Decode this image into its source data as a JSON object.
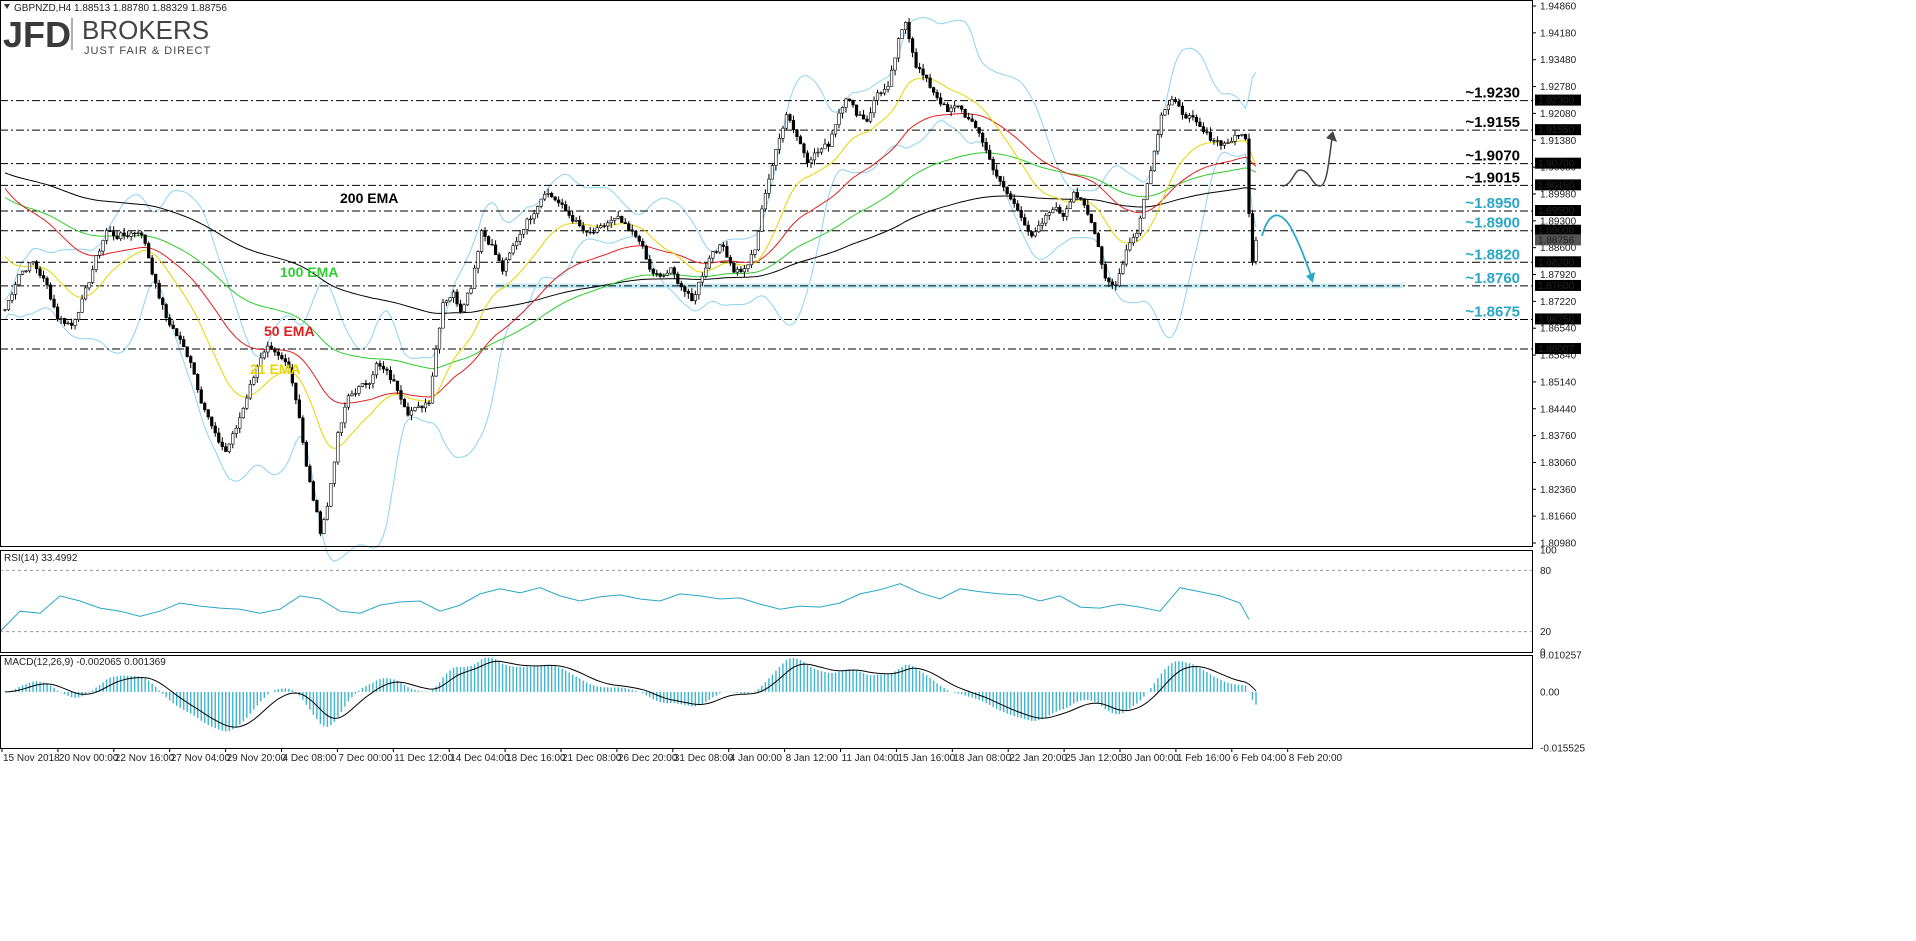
{
  "chart_data": [
    {
      "type": "candlestick",
      "symbol_header": "GBPNZD,H4  1.88513 1.88780 1.88329 1.88756",
      "brand": {
        "main": "JFD",
        "secondary": "BROKERS",
        "tagline": "JUST FAIR & DIRECT"
      },
      "ylim": [
        1.8098,
        1.948
      ],
      "y_ticks": [
        "1.94860",
        "1.94180",
        "1.93480",
        "1.92780",
        "1.92080",
        "1.91380",
        "1.90680",
        "1.89980",
        "1.89300",
        "1.88600",
        "1.87920",
        "1.87220",
        "1.86540",
        "1.85840",
        "1.85140",
        "1.84440",
        "1.83760",
        "1.83060",
        "1.82360",
        "1.81660",
        "1.80980"
      ],
      "x_ticks": [
        "15 Nov 2018",
        "20 Nov 00:00",
        "22 Nov 16:00",
        "27 Nov 04:00",
        "29 Nov 20:00",
        "4 Dec 08:00",
        "7 Dec 00:00",
        "11 Dec 12:00",
        "14 Dec 04:00",
        "18 Dec 16:00",
        "21 Dec 08:00",
        "26 Dec 20:00",
        "31 Dec 08:00",
        "4 Jan 00:00",
        "8 Jan 12:00",
        "11 Jan 04:00",
        "15 Jan 16:00",
        "18 Jan 08:00",
        "22 Jan 20:00",
        "25 Jan 12:00",
        "30 Jan 00:00",
        "1 Feb 16:00",
        "6 Feb 04:00",
        "8 Feb 20:00"
      ],
      "levels": [
        {
          "label": "~1.9230",
          "value": 1.923,
          "axis_label": "1.92300",
          "color": "#000000"
        },
        {
          "label": "~1.9155",
          "value": 1.9155,
          "axis_label": "1.91550",
          "color": "#000000"
        },
        {
          "label": "~1.9070",
          "value": 1.907,
          "axis_label": "1.90700",
          "color": "#000000"
        },
        {
          "label": "~1.9015",
          "value": 1.9015,
          "axis_label": "1.90150",
          "color": "#000000"
        },
        {
          "label": "~1.8950",
          "value": 1.895,
          "axis_label": "1.89500",
          "color": "#29a7c6"
        },
        {
          "label": "~1.8900",
          "value": 1.89,
          "axis_label": "1.89000",
          "color": "#29a7c6"
        },
        {
          "label": "~1.8820",
          "value": 1.882,
          "axis_label": "1.88200",
          "color": "#29a7c6"
        },
        {
          "label": "~1.8760",
          "value": 1.876,
          "axis_label": "1.87600",
          "color": "#29a7c6"
        },
        {
          "label": "~1.8675",
          "value": 1.8675,
          "axis_label": "1.86750",
          "color": "#29a7c6"
        },
        {
          "label": "",
          "value": 1.86,
          "axis_label": "1.86007",
          "color": "#000000"
        }
      ],
      "current_price_label": "1.88756",
      "current_price": 1.88756,
      "ema_labels": [
        {
          "text": "200 EMA",
          "color": "#000000"
        },
        {
          "text": "100 EMA",
          "color": "#2ecc2e"
        },
        {
          "text": "50 EMA",
          "color": "#e02020"
        },
        {
          "text": "21 EMA",
          "color": "#e8d400"
        }
      ],
      "price_path": [
        [
          0,
          1.87
        ],
        [
          4,
          1.879
        ],
        [
          8,
          1.882
        ],
        [
          12,
          1.876
        ],
        [
          15,
          1.868
        ],
        [
          19,
          1.866
        ],
        [
          22,
          1.872
        ],
        [
          26,
          1.883
        ],
        [
          29,
          1.89
        ],
        [
          32,
          1.8885
        ],
        [
          35,
          1.889
        ],
        [
          38,
          1.89
        ],
        [
          40,
          1.887
        ],
        [
          43,
          1.876
        ],
        [
          46,
          1.868
        ],
        [
          50,
          1.862
        ],
        [
          53,
          1.857
        ],
        [
          56,
          1.847
        ],
        [
          60,
          1.838
        ],
        [
          63,
          1.834
        ],
        [
          66,
          1.84
        ],
        [
          69,
          1.848
        ],
        [
          72,
          1.856
        ],
        [
          75,
          1.86
        ],
        [
          78,
          1.858
        ],
        [
          81,
          1.856
        ],
        [
          84,
          1.843
        ],
        [
          86,
          1.83
        ],
        [
          88,
          1.822
        ],
        [
          90,
          1.814
        ],
        [
          92,
          1.82
        ],
        [
          95,
          1.838
        ],
        [
          98,
          1.848
        ],
        [
          101,
          1.85
        ],
        [
          104,
          1.852
        ],
        [
          106,
          1.856
        ],
        [
          109,
          1.854
        ],
        [
          112,
          1.85
        ],
        [
          115,
          1.844
        ],
        [
          118,
          1.845
        ],
        [
          121,
          1.847
        ],
        [
          123,
          1.86
        ],
        [
          125,
          1.872
        ],
        [
          128,
          1.874
        ],
        [
          130,
          1.87
        ],
        [
          133,
          1.876
        ],
        [
          136,
          1.89
        ],
        [
          139,
          1.886
        ],
        [
          142,
          1.88
        ],
        [
          145,
          1.886
        ],
        [
          148,
          1.891
        ],
        [
          151,
          1.895
        ],
        [
          154,
          1.9
        ],
        [
          157,
          1.898
        ],
        [
          160,
          1.895
        ],
        [
          163,
          1.892
        ],
        [
          166,
          1.889
        ],
        [
          169,
          1.89
        ],
        [
          172,
          1.892
        ],
        [
          175,
          1.893
        ],
        [
          178,
          1.89
        ],
        [
          181,
          1.888
        ],
        [
          184,
          1.88
        ],
        [
          187,
          1.878
        ],
        [
          190,
          1.88
        ],
        [
          193,
          1.876
        ],
        [
          196,
          1.872
        ],
        [
          199,
          1.879
        ],
        [
          202,
          1.885
        ],
        [
          205,
          1.886
        ],
        [
          208,
          1.88
        ],
        [
          211,
          1.88
        ],
        [
          214,
          1.885
        ],
        [
          217,
          1.9
        ],
        [
          220,
          1.91
        ],
        [
          223,
          1.92
        ],
        [
          226,
          1.914
        ],
        [
          229,
          1.908
        ],
        [
          232,
          1.91
        ],
        [
          235,
          1.912
        ],
        [
          238,
          1.92
        ],
        [
          240,
          1.924
        ],
        [
          243,
          1.92
        ],
        [
          246,
          1.918
        ],
        [
          249,
          1.925
        ],
        [
          252,
          1.926
        ],
        [
          255,
          1.938
        ],
        [
          257,
          1.943
        ],
        [
          260,
          1.932
        ],
        [
          263,
          1.928
        ],
        [
          266,
          1.924
        ],
        [
          269,
          1.92
        ],
        [
          272,
          1.922
        ],
        [
          275,
          1.918
        ],
        [
          278,
          1.915
        ],
        [
          281,
          1.908
        ],
        [
          284,
          1.902
        ],
        [
          287,
          1.898
        ],
        [
          290,
          1.894
        ],
        [
          293,
          1.888
        ],
        [
          296,
          1.892
        ],
        [
          299,
          1.896
        ],
        [
          302,
          1.894
        ],
        [
          305,
          1.9
        ],
        [
          308,
          1.896
        ],
        [
          311,
          1.89
        ],
        [
          314,
          1.878
        ],
        [
          317,
          1.876
        ],
        [
          320,
          1.885
        ],
        [
          323,
          1.89
        ],
        [
          325,
          1.898
        ],
        [
          328,
          1.91
        ],
        [
          330,
          1.92
        ],
        [
          333,
          1.923
        ],
        [
          336,
          1.92
        ],
        [
          339,
          1.918
        ],
        [
          342,
          1.915
        ],
        [
          345,
          1.913
        ],
        [
          348,
          1.912
        ],
        [
          350,
          1.913
        ],
        [
          352,
          1.914
        ],
        [
          353,
          1.915
        ],
        [
          354,
          1.913
        ],
        [
          355,
          1.894
        ],
        [
          356,
          1.883
        ],
        [
          357,
          1.88756
        ]
      ],
      "n_bars": 358,
      "rsi": {
        "label": "RSI(14) 33.4992",
        "ylim": [
          0,
          100
        ],
        "ticks": [
          "100",
          "80",
          "20",
          "0"
        ],
        "levels": [
          80,
          20
        ],
        "values": [
          [
            0,
            20
          ],
          [
            20,
            40
          ],
          [
            40,
            38
          ],
          [
            60,
            55
          ],
          [
            80,
            50
          ],
          [
            100,
            43
          ],
          [
            120,
            40
          ],
          [
            140,
            35
          ],
          [
            160,
            40
          ],
          [
            180,
            48
          ],
          [
            200,
            45
          ],
          [
            220,
            43
          ],
          [
            240,
            42
          ],
          [
            260,
            38
          ],
          [
            280,
            42
          ],
          [
            300,
            55
          ],
          [
            320,
            52
          ],
          [
            340,
            40
          ],
          [
            360,
            38
          ],
          [
            380,
            46
          ],
          [
            400,
            49
          ],
          [
            420,
            50
          ],
          [
            440,
            40
          ],
          [
            460,
            46
          ],
          [
            480,
            57
          ],
          [
            500,
            62
          ],
          [
            520,
            58
          ],
          [
            540,
            63
          ],
          [
            560,
            55
          ],
          [
            580,
            50
          ],
          [
            600,
            54
          ],
          [
            620,
            56
          ],
          [
            640,
            52
          ],
          [
            660,
            50
          ],
          [
            680,
            57
          ],
          [
            700,
            55
          ],
          [
            720,
            52
          ],
          [
            740,
            53
          ],
          [
            760,
            47
          ],
          [
            780,
            42
          ],
          [
            800,
            45
          ],
          [
            820,
            44
          ],
          [
            840,
            48
          ],
          [
            860,
            57
          ],
          [
            880,
            61
          ],
          [
            900,
            67
          ],
          [
            920,
            58
          ],
          [
            940,
            52
          ],
          [
            960,
            62
          ],
          [
            980,
            59
          ],
          [
            1000,
            57
          ],
          [
            1020,
            56
          ],
          [
            1040,
            50
          ],
          [
            1060,
            55
          ],
          [
            1080,
            44
          ],
          [
            1100,
            43
          ],
          [
            1120,
            47
          ],
          [
            1140,
            44
          ],
          [
            1160,
            40
          ],
          [
            1180,
            63
          ],
          [
            1200,
            59
          ],
          [
            1220,
            55
          ],
          [
            1240,
            48
          ],
          [
            1249,
            32
          ]
        ]
      },
      "macd": {
        "label": "MACD(12,26,9) -0.002065 0.001369",
        "ylim": [
          -0.0155,
          0.0102
        ],
        "ticks": [
          "0.010257",
          "0.00",
          "-0.015525"
        ],
        "zero": 0
      },
      "arrows": {
        "up_scenario": "grey",
        "down_scenario": "#29a7c6"
      }
    }
  ]
}
